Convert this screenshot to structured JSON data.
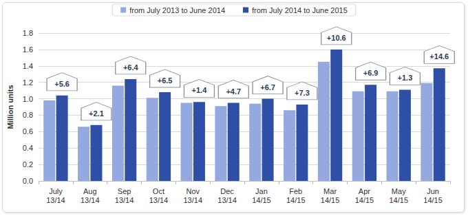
{
  "chart_data": {
    "type": "bar",
    "categories": [
      "July\n13/14",
      "Aug\n13/14",
      "Sep\n13/14",
      "Oct\n13/14",
      "Nov\n13/14",
      "Dec\n13/14",
      "Jan\n14/15",
      "Feb\n14/15",
      "Mar\n14/15",
      "Apr\n14/15",
      "May\n14/15",
      "Jun\n14/15"
    ],
    "series": [
      {
        "name": "from July 2013 to June 2014",
        "color": "#93a9df",
        "values": [
          0.98,
          0.66,
          1.16,
          1.01,
          0.95,
          0.91,
          0.94,
          0.86,
          1.45,
          1.09,
          1.09,
          1.19
        ]
      },
      {
        "name": "from July 2014 to June 2015",
        "color": "#2f4fa6",
        "values": [
          1.04,
          0.68,
          1.24,
          1.08,
          0.96,
          0.95,
          1.0,
          0.93,
          1.6,
          1.17,
          1.11,
          1.37
        ]
      }
    ],
    "annotations": [
      "+5.6",
      "+2.1",
      "+6.4",
      "+6.5",
      "+1.4",
      "+4.7",
      "+6.7",
      "+7.3",
      "+10.6",
      "+6.9",
      "+1.3",
      "+14.6"
    ],
    "y_label": "Million units",
    "ylim": [
      0,
      1.8
    ],
    "yticks": [
      {
        "value": 0,
        "label": "0.0"
      },
      0.2,
      0.4,
      0.6,
      0.8,
      {
        "value": 1,
        "label": "1.0"
      },
      1.2,
      1.4,
      1.6,
      {
        "value": 1.8,
        "label": "1.8"
      }
    ],
    "grid": true,
    "legend": "top"
  }
}
